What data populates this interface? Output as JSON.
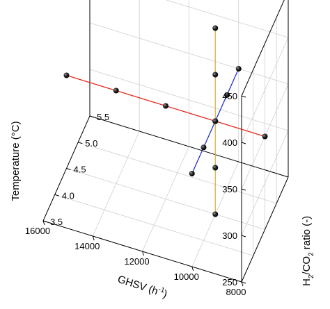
{
  "chart_data": {
    "type": "scatter3d",
    "axes": {
      "x": {
        "label_main": "GHSV (h",
        "label_sup": "-1",
        "label_end": ")",
        "range": [
          8000,
          16000
        ],
        "ticks": [
          "8000",
          "10000",
          "12000",
          "14000",
          "16000"
        ]
      },
      "y": {
        "label_main": "H",
        "label_sub1": "2",
        "label_mid": "/CO",
        "label_sub2": "2",
        "label_end": " ratio (-)",
        "range": [
          3.5,
          5.5
        ],
        "ticks": [
          "3.5",
          "4.0",
          "4.5",
          "5.0",
          "5.5"
        ]
      },
      "z": {
        "label": "Temperature (°C)",
        "range": [
          250,
          450
        ],
        "ticks": [
          "250",
          "300",
          "350",
          "400",
          "450"
        ]
      }
    },
    "grid": true,
    "series": [
      {
        "color": "#e8261c",
        "points": [
          [
            8000,
            4.5,
            350
          ],
          [
            10000,
            4.5,
            350
          ],
          [
            12000,
            4.5,
            350
          ],
          [
            14000,
            4.5,
            350
          ],
          [
            16000,
            4.5,
            350
          ]
        ]
      },
      {
        "color": "#1f35c9",
        "points": [
          [
            10000,
            3.5,
            350
          ],
          [
            10000,
            4.0,
            350
          ],
          [
            10000,
            4.5,
            350
          ],
          [
            10000,
            5.0,
            350
          ],
          [
            10000,
            5.5,
            350
          ]
        ]
      },
      {
        "color": "#d9b24c",
        "points": [
          [
            10000,
            4.5,
            250
          ],
          [
            10000,
            4.5,
            300
          ],
          [
            10000,
            4.5,
            350
          ],
          [
            10000,
            4.5,
            400
          ],
          [
            10000,
            4.5,
            450
          ]
        ]
      }
    ]
  }
}
